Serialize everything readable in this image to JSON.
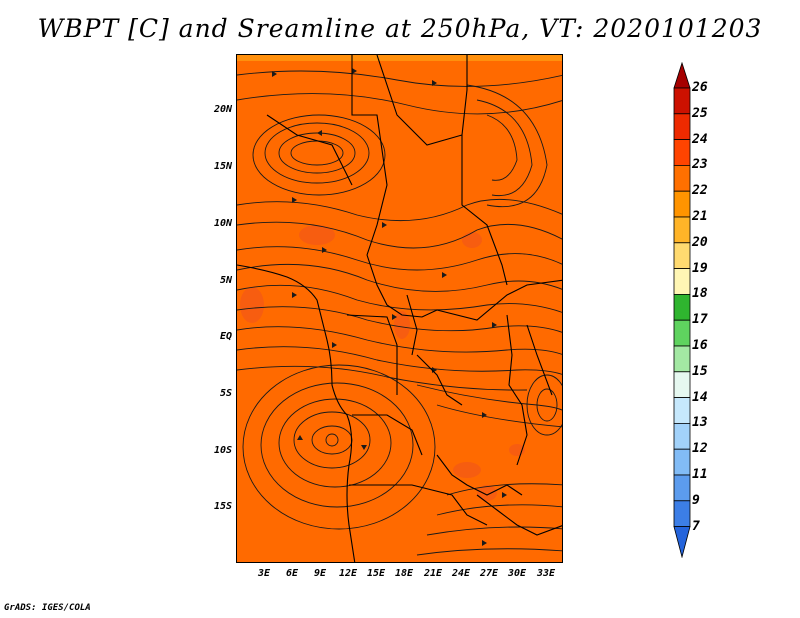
{
  "title": "WBPT [C] and Sreamline at 250hPa, VT: 2020101203",
  "credit": "GrADS: IGES/COLA",
  "map": {
    "fill_color": "#ff6a00",
    "lat_labels": [
      "20N",
      "15N",
      "10N",
      "5N",
      "EQ",
      "5S",
      "10S",
      "15S"
    ],
    "lon_labels": [
      "3E",
      "6E",
      "9E",
      "12E",
      "15E",
      "18E",
      "21E",
      "24E",
      "27E",
      "30E",
      "33E"
    ]
  },
  "colorbar": {
    "labels": [
      "26",
      "25",
      "24",
      "23",
      "22",
      "21",
      "20",
      "19",
      "18",
      "17",
      "16",
      "15",
      "14",
      "13",
      "12",
      "11",
      "9",
      "7"
    ],
    "colors": [
      "#a50000",
      "#cc1100",
      "#ee2a00",
      "#ff4400",
      "#ff7000",
      "#ff9400",
      "#ffb428",
      "#ffda70",
      "#fff6b4",
      "#2fb52f",
      "#5fd35f",
      "#a3e8a3",
      "#e6f8f0",
      "#c6e8fc",
      "#a2d2fa",
      "#82bcf6",
      "#5c9cee",
      "#3c7ee6",
      "#2464dc"
    ]
  }
}
